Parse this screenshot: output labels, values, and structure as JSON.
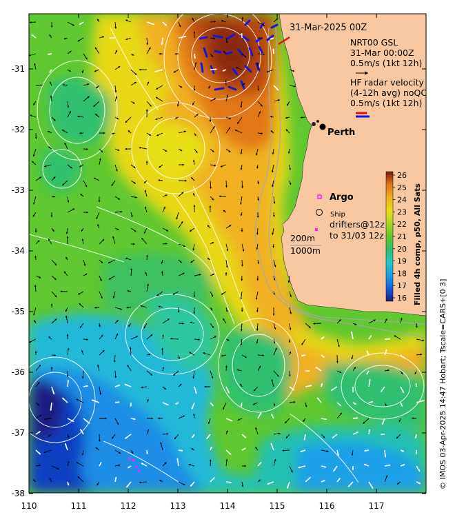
{
  "map": {
    "timestamp_label": "31-Mar-2025 00Z",
    "product_lines": [
      "NRT00 GSL",
      "31-Mar 00:00Z",
      "0.5m/s (1kt 12h)"
    ],
    "hf_radar_lines": [
      "HF radar velocity",
      "(4-12h avg) noQC",
      "0.5m/s (1kt 12h)"
    ],
    "city": "Perth",
    "argo_label": "Argo",
    "ship_label": "Ship",
    "drifter_lines": [
      "drifters@12z",
      "to 31/03 12z"
    ],
    "isobath_labels": [
      "200m",
      "1000m"
    ],
    "lat_ticks": [
      "-31",
      "-32",
      "-33",
      "-34",
      "-35",
      "-36",
      "-37",
      "-38"
    ],
    "lon_ticks": [
      "110",
      "111",
      "112",
      "113",
      "114",
      "115",
      "116",
      "117"
    ],
    "colorbar_ticks": [
      "26",
      "25",
      "24",
      "23",
      "22",
      "21",
      "20",
      "19",
      "18",
      "17",
      "16"
    ],
    "colorbar_title": "Filled 4h comp, p50, All Sats",
    "credit": "© IMOS 03-Apr-2025 14:47 Hobart; Tscale=CARS+[0 3]"
  },
  "colors": {
    "land": "#f9c8a0",
    "sst_scale": [
      "#1a1a80",
      "#2030b0",
      "#1060e0",
      "#1aa0e8",
      "#22c8c8",
      "#2ec070",
      "#60c830",
      "#a8d820",
      "#e8e018",
      "#f0b020",
      "#e07818",
      "#b84810",
      "#7a1a0a"
    ]
  }
}
